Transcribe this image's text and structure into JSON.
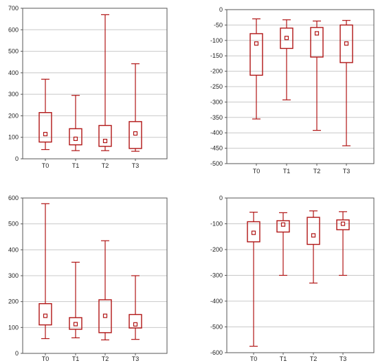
{
  "colors": {
    "box": "#b01414",
    "grid": "#c8c8c8",
    "frame": "#555555",
    "background": "#ffffff"
  },
  "chart_data": [
    {
      "type": "box",
      "title": "",
      "xlabel": "",
      "ylabel": "",
      "categories": [
        "T0",
        "T1",
        "T2",
        "T3"
      ],
      "ylim": [
        0,
        700
      ],
      "yticks": [
        0,
        100,
        200,
        300,
        400,
        500,
        600,
        700
      ],
      "grid": true,
      "boxes": [
        {
          "min": 43,
          "q1": 78,
          "median": 115,
          "q3": 215,
          "max": 370
        },
        {
          "min": 38,
          "q1": 65,
          "median": 93,
          "q3": 140,
          "max": 295
        },
        {
          "min": 38,
          "q1": 58,
          "median": 83,
          "q3": 155,
          "max": 670
        },
        {
          "min": 35,
          "q1": 48,
          "median": 118,
          "q3": 173,
          "max": 442
        }
      ]
    },
    {
      "type": "box",
      "title": "",
      "xlabel": "",
      "ylabel": "",
      "categories": [
        "T0",
        "T1",
        "T2",
        "T3"
      ],
      "ylim": [
        -500,
        0
      ],
      "yticks": [
        0,
        -50,
        -100,
        -150,
        -200,
        -250,
        -300,
        -350,
        -400,
        -450,
        -500
      ],
      "grid": true,
      "boxes": [
        {
          "min": -355,
          "q1": -213,
          "median": -110,
          "q3": -78,
          "max": -30
        },
        {
          "min": -293,
          "q1": -126,
          "median": -92,
          "q3": -60,
          "max": -33
        },
        {
          "min": -392,
          "q1": -154,
          "median": -77,
          "q3": -58,
          "max": -37
        },
        {
          "min": -442,
          "q1": -172,
          "median": -110,
          "q3": -50,
          "max": -35
        }
      ]
    },
    {
      "type": "box",
      "title": "",
      "xlabel": "",
      "ylabel": "",
      "categories": [
        "T0",
        "T1",
        "T2",
        "T3"
      ],
      "ylim": [
        0,
        600
      ],
      "yticks": [
        0,
        100,
        200,
        300,
        400,
        500,
        600
      ],
      "grid": true,
      "boxes": [
        {
          "min": 57,
          "q1": 110,
          "median": 145,
          "q3": 192,
          "max": 578
        },
        {
          "min": 60,
          "q1": 93,
          "median": 113,
          "q3": 138,
          "max": 352
        },
        {
          "min": 52,
          "q1": 80,
          "median": 145,
          "q3": 207,
          "max": 435
        },
        {
          "min": 54,
          "q1": 98,
          "median": 112,
          "q3": 150,
          "max": 300
        }
      ]
    },
    {
      "type": "box",
      "title": "",
      "xlabel": "",
      "ylabel": "",
      "categories": [
        "T0",
        "T1",
        "T2",
        "T3"
      ],
      "ylim": [
        -600,
        0
      ],
      "yticks": [
        0,
        -100,
        -200,
        -300,
        -400,
        -500,
        -600
      ],
      "grid": true,
      "boxes": [
        {
          "min": -575,
          "q1": -170,
          "median": -135,
          "q3": -92,
          "max": -55
        },
        {
          "min": -300,
          "q1": -132,
          "median": -103,
          "q3": -88,
          "max": -57
        },
        {
          "min": -330,
          "q1": -180,
          "median": -145,
          "q3": -75,
          "max": -50
        },
        {
          "min": -300,
          "q1": -123,
          "median": -100,
          "q3": -85,
          "max": -53
        }
      ]
    }
  ]
}
